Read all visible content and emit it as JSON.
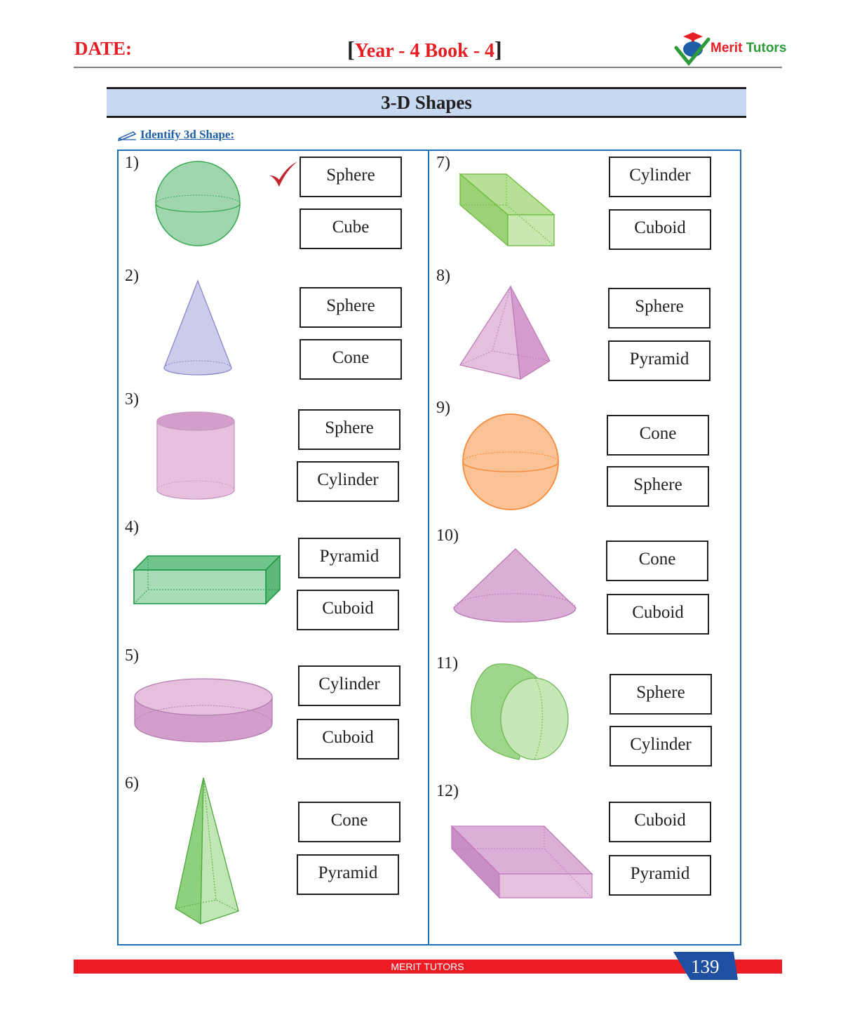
{
  "header": {
    "date_label": "DATE:",
    "bracket_open": "[",
    "bracket_close": "]",
    "title": "Year - 4 Book - 4",
    "logo_merit": "Merit",
    "logo_tutors": "Tutors"
  },
  "banner_title": "3-D Shapes",
  "instruction": "Identify 3d Shape:",
  "questions": [
    {
      "num": "1)",
      "options": [
        "Sphere",
        "Cube"
      ]
    },
    {
      "num": "2)",
      "options": [
        "Sphere",
        "Cone"
      ]
    },
    {
      "num": "3)",
      "options": [
        "Sphere",
        "Cylinder"
      ]
    },
    {
      "num": "4)",
      "options": [
        "Pyramid",
        "Cuboid"
      ]
    },
    {
      "num": "5)",
      "options": [
        "Cylinder",
        "Cuboid"
      ]
    },
    {
      "num": "6)",
      "options": [
        "Cone",
        "Pyramid"
      ]
    },
    {
      "num": "7)",
      "options": [
        "Cylinder",
        "Cuboid"
      ]
    },
    {
      "num": "8)",
      "options": [
        "Sphere",
        "Pyramid"
      ]
    },
    {
      "num": "9)",
      "options": [
        "Cone",
        "Sphere"
      ]
    },
    {
      "num": "10)",
      "options": [
        "Cone",
        "Cuboid"
      ]
    },
    {
      "num": "11)",
      "options": [
        "Sphere",
        "Cylinder"
      ]
    },
    {
      "num": "12)",
      "options": [
        "Cuboid",
        "Pyramid"
      ]
    }
  ],
  "footer": {
    "brand": "MERIT TUTORS",
    "page_number": "139"
  },
  "colors": {
    "accent_red": "#e31e24",
    "frame_blue": "#1f6fb5",
    "banner_blue": "#c6d9f0"
  }
}
